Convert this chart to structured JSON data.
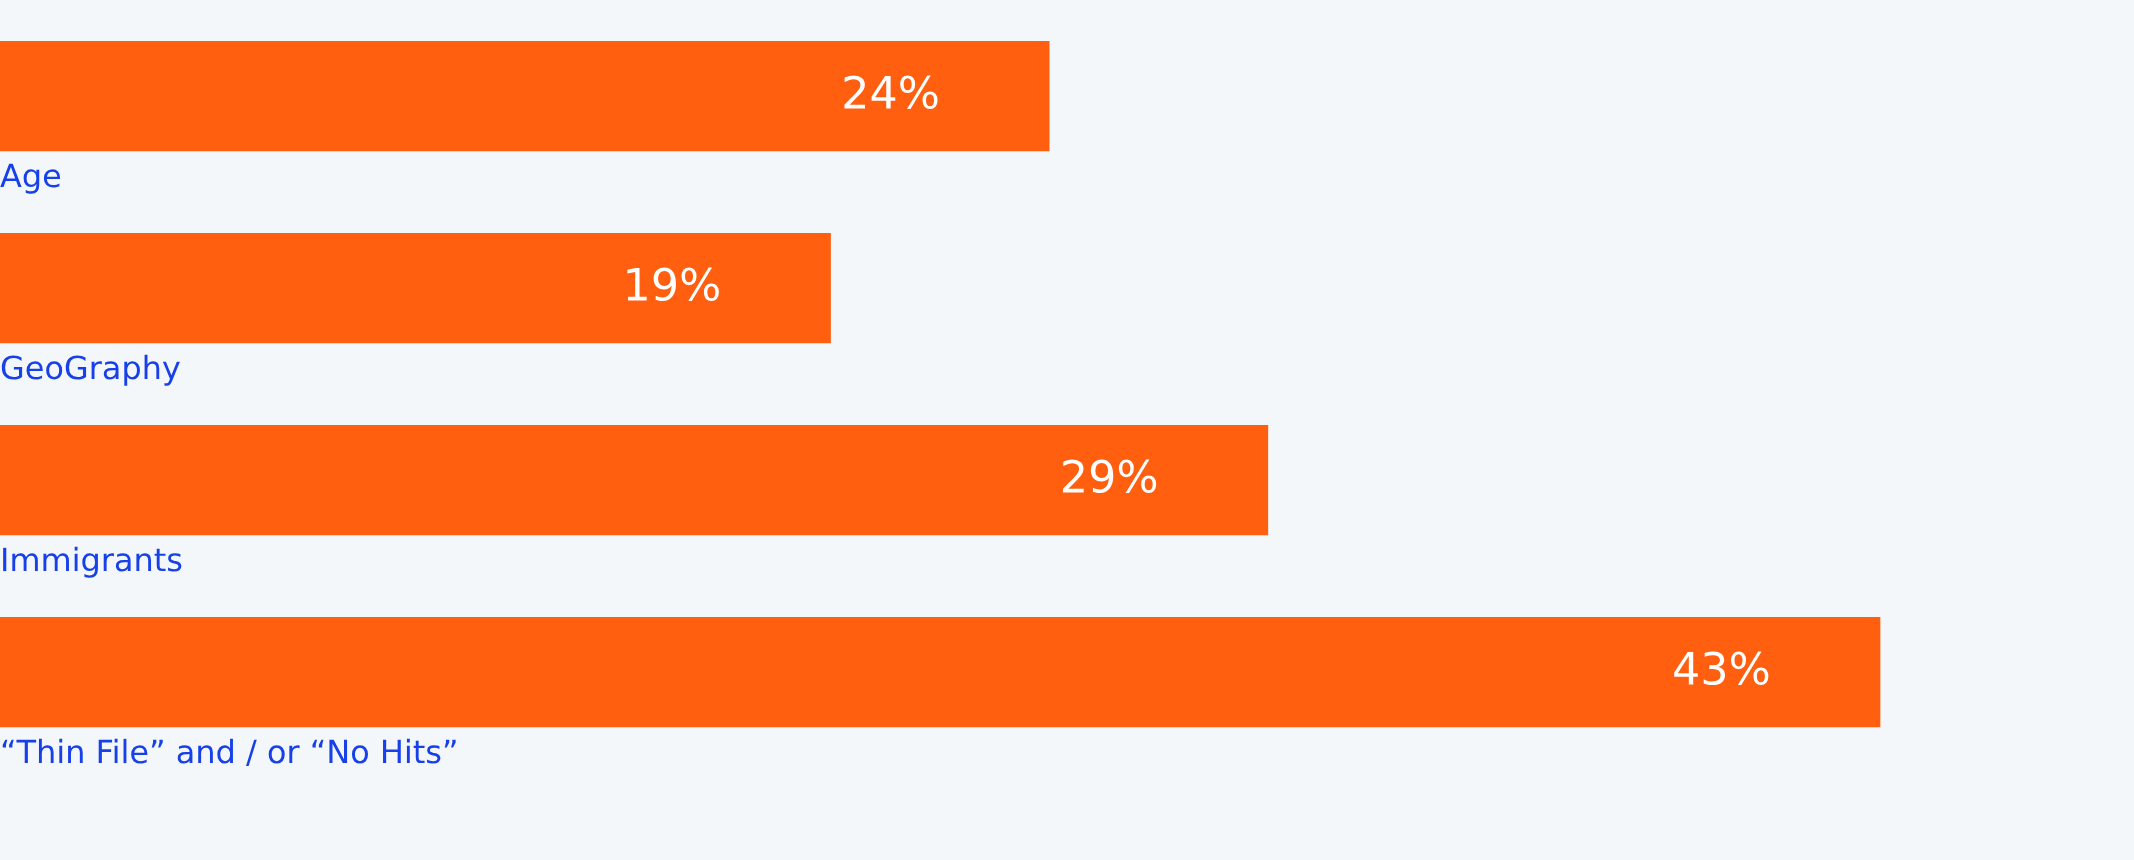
{
  "chart_data": {
    "type": "bar",
    "orientation": "horizontal",
    "categories": [
      "Age",
      "GeoGraphy",
      "Immigrants",
      "“Thin File” and / or “No Hits”"
    ],
    "values": [
      24,
      19,
      29,
      43
    ],
    "value_labels": [
      "24%",
      "19%",
      "29%",
      "43%"
    ],
    "color": "#ff5f0f",
    "xlim": [
      0,
      48.8
    ]
  }
}
